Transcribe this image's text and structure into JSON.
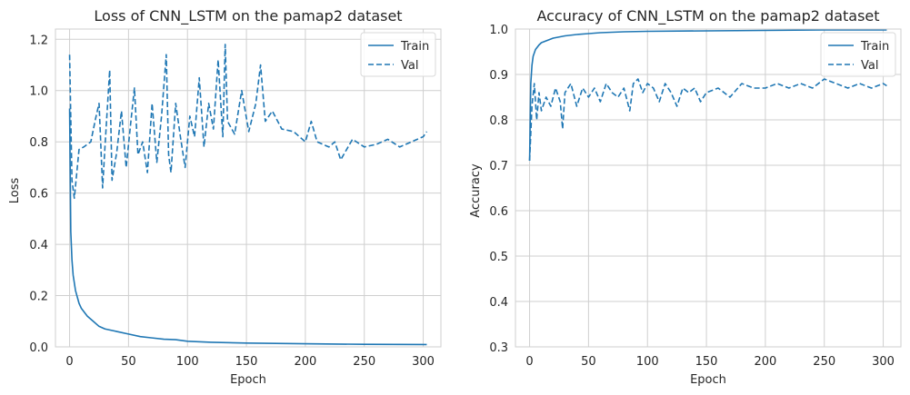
{
  "chart_data": [
    {
      "type": "line",
      "title": "Loss of CNN_LSTM on the pamap2 dataset",
      "xlabel": "Epoch",
      "ylabel": "Loss",
      "xlim": [
        -12,
        315
      ],
      "ylim": [
        0,
        1.24
      ],
      "xticks": [
        0,
        50,
        100,
        150,
        200,
        250,
        300
      ],
      "yticks": [
        0.0,
        0.2,
        0.4,
        0.6,
        0.8,
        1.0,
        1.2
      ],
      "ytick_decimals": 1,
      "grid": true,
      "legend": "top-right",
      "series": [
        {
          "name": "Train",
          "style": "solid",
          "color": "#1f77b4",
          "x": [
            0,
            1,
            2,
            3,
            5,
            8,
            10,
            15,
            20,
            25,
            30,
            40,
            50,
            60,
            70,
            80,
            90,
            100,
            120,
            150,
            200,
            250,
            303
          ],
          "y": [
            0.93,
            0.45,
            0.34,
            0.28,
            0.22,
            0.17,
            0.15,
            0.12,
            0.1,
            0.08,
            0.07,
            0.06,
            0.05,
            0.04,
            0.035,
            0.03,
            0.028,
            0.022,
            0.018,
            0.015,
            0.012,
            0.01,
            0.009
          ]
        },
        {
          "name": "Val",
          "style": "dashed",
          "color": "#1f77b4",
          "x": [
            0,
            2,
            4,
            8,
            12,
            18,
            22,
            25,
            28,
            30,
            34,
            36,
            40,
            44,
            48,
            52,
            55,
            58,
            62,
            66,
            70,
            74,
            78,
            82,
            84,
            86,
            90,
            94,
            98,
            102,
            106,
            110,
            114,
            118,
            122,
            126,
            130,
            132,
            134,
            140,
            146,
            152,
            158,
            162,
            166,
            172,
            180,
            190,
            200,
            205,
            210,
            220,
            225,
            230,
            240,
            250,
            260,
            270,
            280,
            290,
            300,
            303
          ],
          "y": [
            1.14,
            0.65,
            0.58,
            0.77,
            0.78,
            0.8,
            0.89,
            0.95,
            0.62,
            0.78,
            1.08,
            0.65,
            0.76,
            0.92,
            0.7,
            0.88,
            1.01,
            0.75,
            0.8,
            0.68,
            0.95,
            0.72,
            0.9,
            1.14,
            0.75,
            0.68,
            0.95,
            0.82,
            0.7,
            0.9,
            0.82,
            1.05,
            0.78,
            0.95,
            0.85,
            1.12,
            0.82,
            1.18,
            0.88,
            0.83,
            1.0,
            0.84,
            0.95,
            1.1,
            0.88,
            0.92,
            0.85,
            0.84,
            0.8,
            0.88,
            0.8,
            0.78,
            0.8,
            0.73,
            0.81,
            0.78,
            0.79,
            0.81,
            0.78,
            0.8,
            0.82,
            0.84
          ]
        }
      ]
    },
    {
      "type": "line",
      "title": "Accuracy of CNN_LSTM on the pamap2 dataset",
      "xlabel": "Epoch",
      "ylabel": "Accuracy",
      "xlim": [
        -12,
        315
      ],
      "ylim": [
        0.3,
        1.0
      ],
      "xticks": [
        0,
        50,
        100,
        150,
        200,
        250,
        300
      ],
      "yticks": [
        0.3,
        0.4,
        0.5,
        0.6,
        0.7,
        0.8,
        0.9,
        1.0
      ],
      "ytick_decimals": 1,
      "grid": true,
      "legend": "top-right",
      "series": [
        {
          "name": "Train",
          "style": "solid",
          "color": "#1f77b4",
          "x": [
            0,
            1,
            2,
            3,
            5,
            8,
            10,
            15,
            20,
            30,
            40,
            50,
            60,
            80,
            100,
            150,
            200,
            250,
            303
          ],
          "y": [
            0.71,
            0.88,
            0.92,
            0.94,
            0.955,
            0.965,
            0.97,
            0.975,
            0.98,
            0.985,
            0.988,
            0.99,
            0.992,
            0.994,
            0.995,
            0.996,
            0.997,
            0.998,
            0.998
          ]
        },
        {
          "name": "Val",
          "style": "dashed",
          "color": "#1f77b4",
          "x": [
            0,
            2,
            4,
            6,
            8,
            10,
            14,
            18,
            22,
            26,
            28,
            30,
            35,
            40,
            45,
            50,
            55,
            60,
            65,
            70,
            75,
            80,
            85,
            88,
            92,
            96,
            100,
            105,
            110,
            115,
            120,
            125,
            130,
            135,
            140,
            145,
            150,
            160,
            170,
            180,
            190,
            200,
            210,
            220,
            230,
            240,
            250,
            260,
            270,
            280,
            290,
            300,
            303
          ],
          "y": [
            0.71,
            0.83,
            0.88,
            0.8,
            0.86,
            0.82,
            0.85,
            0.83,
            0.87,
            0.84,
            0.78,
            0.86,
            0.88,
            0.83,
            0.87,
            0.85,
            0.87,
            0.84,
            0.88,
            0.86,
            0.85,
            0.87,
            0.82,
            0.88,
            0.89,
            0.86,
            0.88,
            0.87,
            0.84,
            0.88,
            0.86,
            0.83,
            0.87,
            0.86,
            0.87,
            0.84,
            0.86,
            0.87,
            0.85,
            0.88,
            0.87,
            0.87,
            0.88,
            0.87,
            0.88,
            0.87,
            0.89,
            0.88,
            0.87,
            0.88,
            0.87,
            0.88,
            0.875
          ]
        }
      ]
    }
  ]
}
